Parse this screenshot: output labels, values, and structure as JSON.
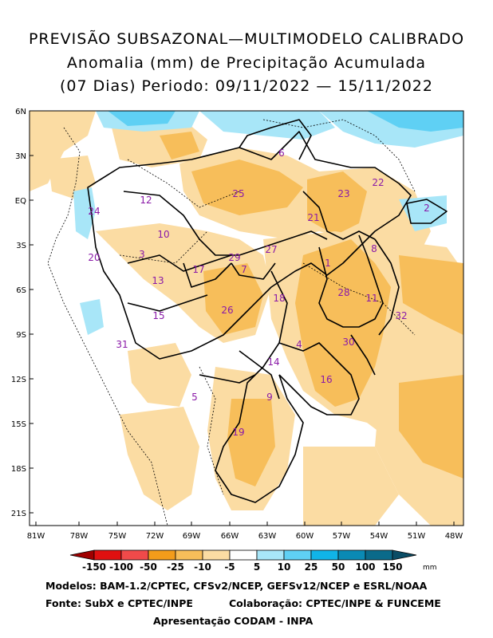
{
  "title": {
    "line1": "PREVISÃO SUBSAZONAL—MULTIMODELO CALIBRADO",
    "line2": "Anomalia (mm) de Precipitação Acumulada",
    "line3": "(07 Dias) Periodo: 09/11/2022 — 15/11/2022"
  },
  "lat_labels": [
    "6N",
    "3N",
    "EQ",
    "3S",
    "6S",
    "9S",
    "12S",
    "15S",
    "18S",
    "21S"
  ],
  "lon_labels": [
    "81W",
    "78W",
    "75W",
    "72W",
    "69W",
    "66W",
    "63W",
    "60W",
    "57W",
    "54W",
    "51W",
    "48W"
  ],
  "legend": {
    "unit": "mm",
    "tick_labels": [
      "-150",
      "-100",
      "-50",
      "-25",
      "-10",
      "-5",
      "5",
      "10",
      "25",
      "50",
      "100",
      "150"
    ],
    "colors": [
      "#a00000",
      "#e01010",
      "#f04a4a",
      "#f39c1a",
      "#f7be5a",
      "#fbdca3",
      "#ffffff",
      "#a8e6f8",
      "#5fd0f4",
      "#10b4e8",
      "#0a8ab4",
      "#0a6a8a",
      "#0a4d66"
    ]
  },
  "basins": [
    {
      "id": "1",
      "color": "#8a1aa8"
    },
    {
      "id": "2"
    },
    {
      "id": "3"
    },
    {
      "id": "4"
    },
    {
      "id": "5"
    },
    {
      "id": "6"
    },
    {
      "id": "7"
    },
    {
      "id": "8"
    },
    {
      "id": "9"
    },
    {
      "id": "10"
    },
    {
      "id": "11"
    },
    {
      "id": "12"
    },
    {
      "id": "13"
    },
    {
      "id": "14"
    },
    {
      "id": "15"
    },
    {
      "id": "16"
    },
    {
      "id": "17"
    },
    {
      "id": "18"
    },
    {
      "id": "19"
    },
    {
      "id": "20"
    },
    {
      "id": "21"
    },
    {
      "id": "22"
    },
    {
      "id": "23"
    },
    {
      "id": "24"
    },
    {
      "id": "25"
    },
    {
      "id": "26"
    },
    {
      "id": "27"
    },
    {
      "id": "28"
    },
    {
      "id": "29"
    },
    {
      "id": "30"
    },
    {
      "id": "31"
    },
    {
      "id": "32"
    }
  ],
  "credits": {
    "line1": "Modelos: BAM-1.2/CPTEC, CFSv2/NCEP, GEFSv12/NCEP e ESRL/NOAA",
    "line2a": "Fonte: SubX e CPTEC/INPE",
    "line2b": "Colaboração: CPTEC/INPE & FUNCEME",
    "line3": "Apresentação CODAM - INPA"
  }
}
